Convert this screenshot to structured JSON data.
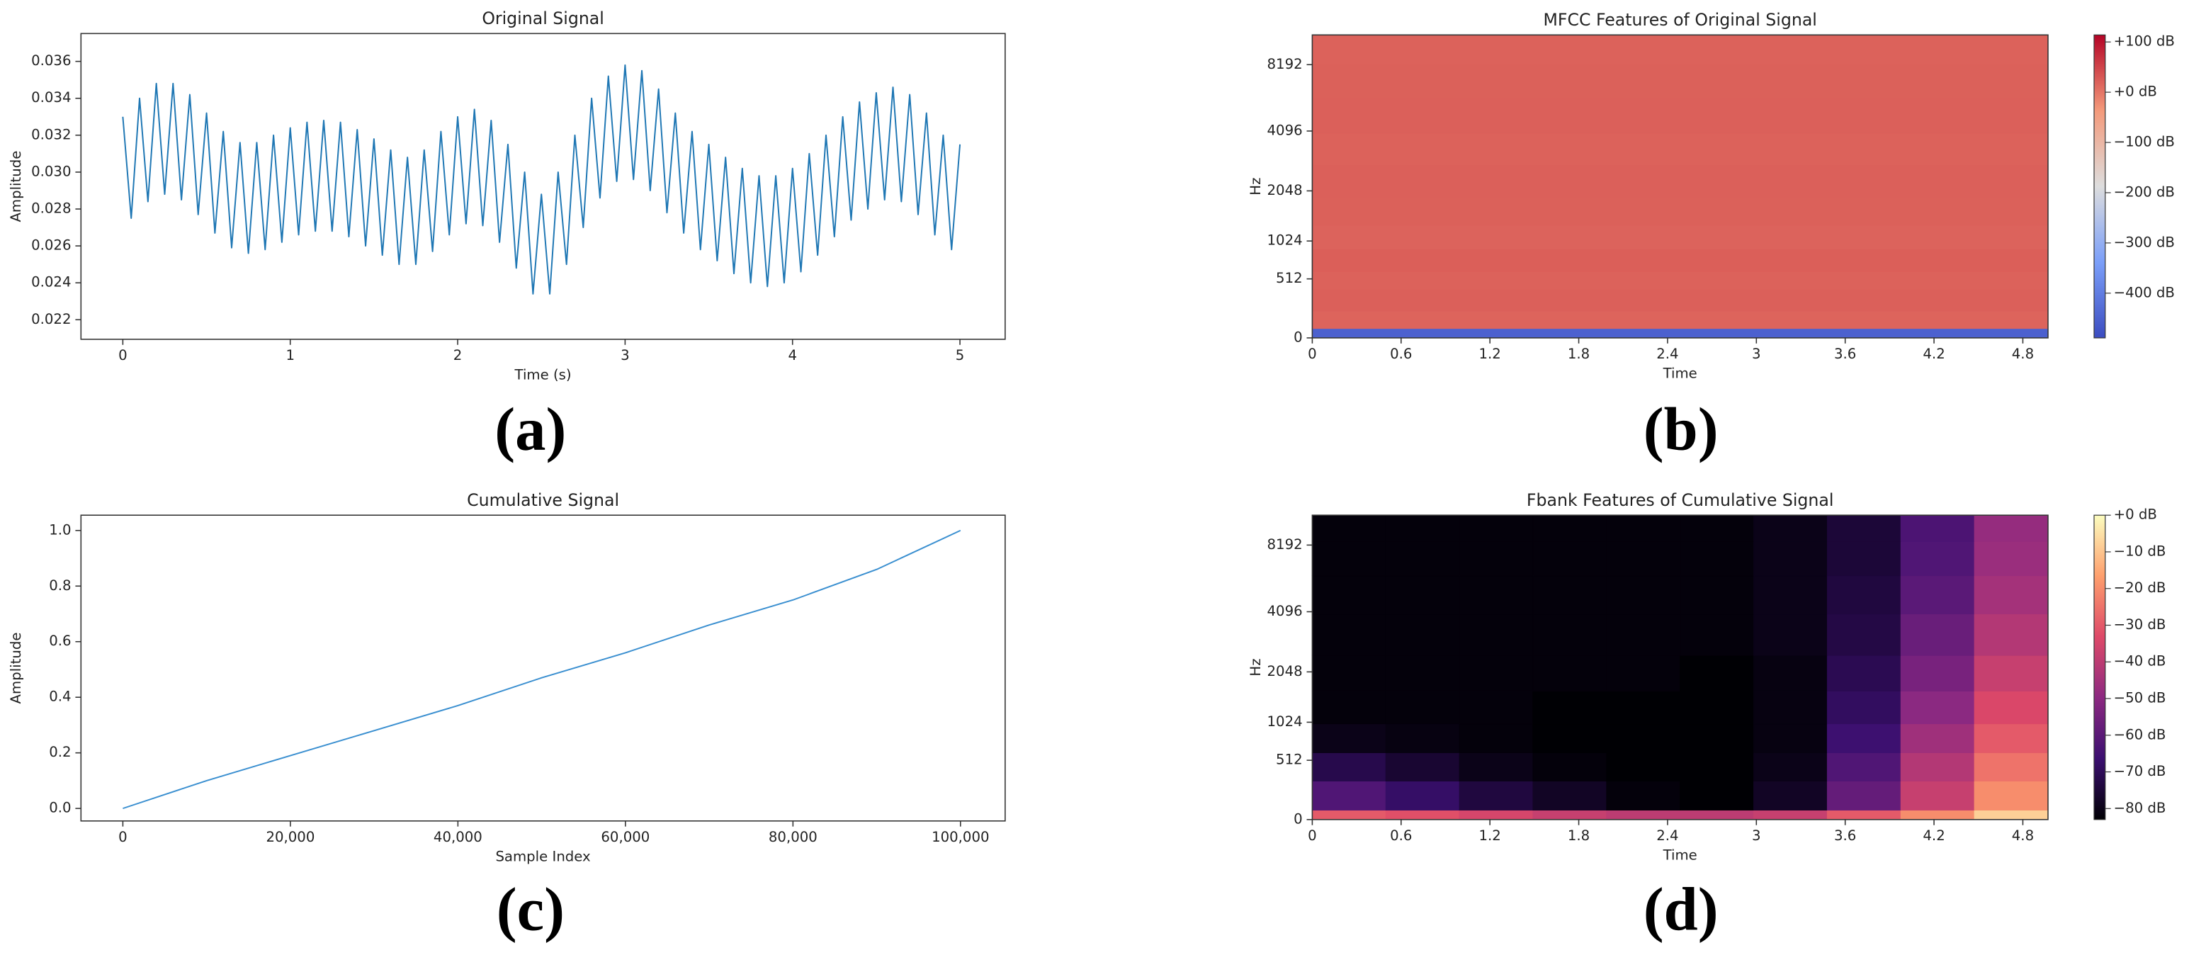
{
  "chart_data": [
    {
      "type": "line",
      "title": "Original Signal",
      "xlabel": "Time (s)",
      "ylabel": "Amplitude",
      "caption": "(a)",
      "color": "#1f77b4",
      "x": [
        0,
        0.05,
        0.1,
        0.15,
        0.2,
        0.25,
        0.3,
        0.35,
        0.4,
        0.45,
        0.5,
        0.55,
        0.6,
        0.65,
        0.7,
        0.75,
        0.8,
        0.85,
        0.9,
        0.95,
        1,
        1.05,
        1.1,
        1.15,
        1.2,
        1.25,
        1.3,
        1.35,
        1.4,
        1.45,
        1.5,
        1.55,
        1.6,
        1.65,
        1.7,
        1.75,
        1.8,
        1.85,
        1.9,
        1.95,
        2,
        2.05,
        2.1,
        2.15,
        2.2,
        2.25,
        2.3,
        2.35,
        2.4,
        2.45,
        2.5,
        2.55,
        2.6,
        2.65,
        2.7,
        2.75,
        2.8,
        2.85,
        2.9,
        2.95,
        3,
        3.05,
        3.1,
        3.15,
        3.2,
        3.25,
        3.3,
        3.35,
        3.4,
        3.45,
        3.5,
        3.55,
        3.6,
        3.65,
        3.7,
        3.75,
        3.8,
        3.85,
        3.9,
        3.95,
        4,
        4.05,
        4.1,
        4.15,
        4.2,
        4.25,
        4.3,
        4.35,
        4.4,
        4.45,
        4.5,
        4.55,
        4.6,
        4.65,
        4.7,
        4.75,
        4.8,
        4.85,
        4.9,
        4.95,
        5
      ],
      "values": [
        0.033,
        0.0275,
        0.034,
        0.0284,
        0.0348,
        0.0288,
        0.0348,
        0.0285,
        0.0342,
        0.0277,
        0.0332,
        0.0267,
        0.0322,
        0.0259,
        0.0316,
        0.0256,
        0.0316,
        0.0258,
        0.032,
        0.0262,
        0.0324,
        0.0266,
        0.0327,
        0.0268,
        0.0328,
        0.0268,
        0.0327,
        0.0265,
        0.0323,
        0.026,
        0.0318,
        0.0255,
        0.0312,
        0.025,
        0.0308,
        0.025,
        0.0312,
        0.0257,
        0.0322,
        0.0266,
        0.033,
        0.0272,
        0.0334,
        0.0271,
        0.0328,
        0.0262,
        0.0315,
        0.0248,
        0.03,
        0.0234,
        0.0288,
        0.0234,
        0.03,
        0.025,
        0.032,
        0.027,
        0.034,
        0.0286,
        0.0352,
        0.0295,
        0.0358,
        0.0296,
        0.0355,
        0.029,
        0.0345,
        0.0278,
        0.0332,
        0.0267,
        0.0322,
        0.0258,
        0.0315,
        0.0252,
        0.0308,
        0.0245,
        0.0302,
        0.024,
        0.0298,
        0.0238,
        0.0298,
        0.024,
        0.0302,
        0.0246,
        0.031,
        0.0255,
        0.032,
        0.0265,
        0.033,
        0.0274,
        0.0338,
        0.028,
        0.0343,
        0.0285,
        0.0346,
        0.0284,
        0.0342,
        0.0277,
        0.0332,
        0.0266,
        0.032,
        0.0258,
        0.0315
      ],
      "xlim": [
        -0.25,
        5.27
      ],
      "xticks": [
        0,
        1,
        2,
        3,
        4,
        5
      ],
      "ylim": [
        0.02094,
        0.03751
      ],
      "yticks": [
        0.022,
        0.024,
        0.026,
        0.028,
        {
          "value": 0.03,
          "label": "0.030"
        },
        0.032,
        0.034,
        0.036
      ]
    },
    {
      "type": "heatmap",
      "title": "MFCC Features of Original Signal",
      "xlabel": "Time",
      "ylabel": "Hz",
      "caption": "(b)",
      "cmap": "coolwarm",
      "yscale": "mel",
      "xlim": [
        0,
        4.97
      ],
      "xticks": [
        0,
        0.6,
        1.2,
        1.8,
        2.4,
        3,
        3.6,
        4.2,
        4.8
      ],
      "ylim": [
        0,
        11025
      ],
      "yticks": [
        0,
        512,
        1024,
        2048,
        4096,
        8192
      ],
      "y_edges": [
        0,
        64,
        200,
        400,
        600,
        900,
        1300,
        1900,
        2800,
        4000,
        5800,
        8200,
        11025
      ],
      "z": [
        [
          -450
        ],
        [
          18
        ],
        [
          22
        ],
        [
          20
        ],
        [
          23
        ],
        [
          19
        ],
        [
          21
        ],
        [
          22
        ],
        [
          20
        ],
        [
          22
        ],
        [
          21
        ],
        [
          20
        ]
      ],
      "clim": [
        -489,
        114
      ],
      "cticks": [
        {
          "value": 100,
          "label": "+100 dB"
        },
        {
          "value": 0,
          "label": "+0 dB"
        },
        {
          "value": -100,
          "label": "−100 dB"
        },
        {
          "value": -200,
          "label": "−200 dB"
        },
        {
          "value": -300,
          "label": "−300 dB"
        },
        {
          "value": -400,
          "label": "−400 dB"
        }
      ]
    },
    {
      "type": "line",
      "title": "Cumulative Signal",
      "xlabel": "Sample Index",
      "ylabel": "Amplitude",
      "caption": "(c)",
      "color": "#3a8fd0",
      "x": [
        0,
        10000,
        20000,
        30000,
        40000,
        50000,
        60000,
        70000,
        80000,
        90000,
        100000
      ],
      "values": [
        0,
        0.1,
        0.19,
        0.28,
        0.37,
        0.47,
        0.56,
        0.66,
        0.75,
        0.86,
        1
      ],
      "xlim": [
        -5000,
        105333
      ],
      "xticks": [
        0,
        {
          "value": 20000,
          "label": "20,000"
        },
        {
          "value": 40000,
          "label": "40,000"
        },
        {
          "value": 60000,
          "label": "60,000"
        },
        {
          "value": 80000,
          "label": "80,000"
        },
        {
          "value": 100000,
          "label": "100,000"
        }
      ],
      "ylim": [
        -0.045,
        1.055
      ],
      "yticks": [
        {
          "value": 0,
          "label": "0.0"
        },
        0.2,
        0.4,
        0.6,
        0.8,
        {
          "value": 1,
          "label": "1.0"
        }
      ]
    },
    {
      "type": "heatmap",
      "title": "Fbank Features of Cumulative Signal",
      "xlabel": "Time",
      "ylabel": "Hz",
      "caption": "(d)",
      "cmap": "magma",
      "yscale": "mel",
      "xlim": [
        0,
        4.97
      ],
      "xticks": [
        0,
        0.6,
        1.2,
        1.8,
        2.4,
        3,
        3.6,
        4.2,
        4.8
      ],
      "ylim": [
        0,
        11025
      ],
      "yticks": [
        0,
        512,
        1024,
        2048,
        4096,
        8192
      ],
      "y_edges": [
        0,
        64,
        300,
        600,
        1000,
        1600,
        2500,
        4000,
        6000,
        8500,
        11025
      ],
      "z": [
        [
          -30,
          -32,
          -35,
          -38,
          -40,
          -40,
          -38,
          -30,
          -20,
          -8
        ],
        [
          -62,
          -68,
          -74,
          -78,
          -82,
          -83,
          -78,
          -58,
          -38,
          -20
        ],
        [
          -72,
          -76,
          -80,
          -82,
          -83,
          -83,
          -80,
          -62,
          -42,
          -25
        ],
        [
          -80,
          -81,
          -82,
          -83,
          -83,
          -83,
          -81,
          -66,
          -46,
          -30
        ],
        [
          -82,
          -82,
          -82,
          -83,
          -83,
          -83,
          -81,
          -69,
          -50,
          -34
        ],
        [
          -82,
          -82,
          -82,
          -82,
          -82,
          -83,
          -81,
          -71,
          -54,
          -38
        ],
        [
          -82,
          -82,
          -82,
          -82,
          -82,
          -82,
          -80,
          -73,
          -57,
          -42
        ],
        [
          -82,
          -82,
          -82,
          -82,
          -82,
          -82,
          -80,
          -74,
          -60,
          -45
        ],
        [
          -82,
          -82,
          -82,
          -82,
          -82,
          -82,
          -80,
          -75,
          -62,
          -47
        ],
        [
          -82,
          -82,
          -82,
          -82,
          -82,
          -82,
          -80,
          -75,
          -63,
          -48
        ]
      ],
      "clim": [
        -83,
        0
      ],
      "cticks": [
        {
          "value": 0,
          "label": "+0 dB"
        },
        {
          "value": -10,
          "label": "−10 dB"
        },
        {
          "value": -20,
          "label": "−20 dB"
        },
        {
          "value": -30,
          "label": "−30 dB"
        },
        {
          "value": -40,
          "label": "−40 dB"
        },
        {
          "value": -50,
          "label": "−50 dB"
        },
        {
          "value": -60,
          "label": "−60 dB"
        },
        {
          "value": -70,
          "label": "−70 dB"
        },
        {
          "value": -80,
          "label": "−80 dB"
        }
      ]
    }
  ]
}
